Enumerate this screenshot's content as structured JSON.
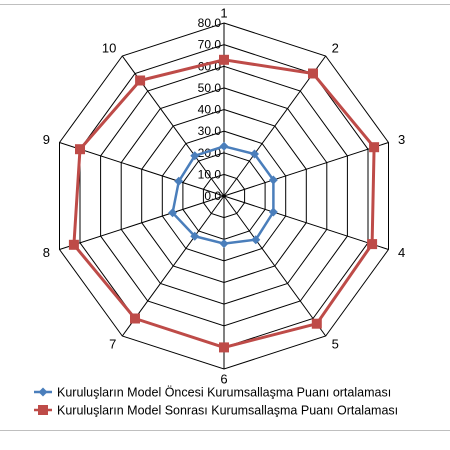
{
  "chart_data": {
    "type": "radar",
    "categories": [
      "1",
      "2",
      "3",
      "4",
      "5",
      "6",
      "7",
      "8",
      "9",
      "10"
    ],
    "ticks": [
      "0.0",
      "10.0",
      "20.0",
      "30.0",
      "40.0",
      "50.0",
      "60.0",
      "70.0",
      "80.0"
    ],
    "rmax": 80,
    "grid": true,
    "legend_position": "bottom",
    "series": [
      {
        "name": "Kuruluşların Model Öncesi Kurumsallaşma Puanı ortalaması",
        "color": "#4a7ebb",
        "marker": "diamond",
        "values": [
          23,
          24,
          24,
          24,
          25,
          22,
          23,
          25,
          22,
          23
        ]
      },
      {
        "name": "Kuruluşların Model Sonrası Kurumsallaşma Puanı Ortalaması",
        "color": "#be4b48",
        "marker": "square",
        "values": [
          63,
          70,
          73,
          72,
          73,
          70,
          70,
          73,
          70,
          66
        ]
      }
    ]
  }
}
